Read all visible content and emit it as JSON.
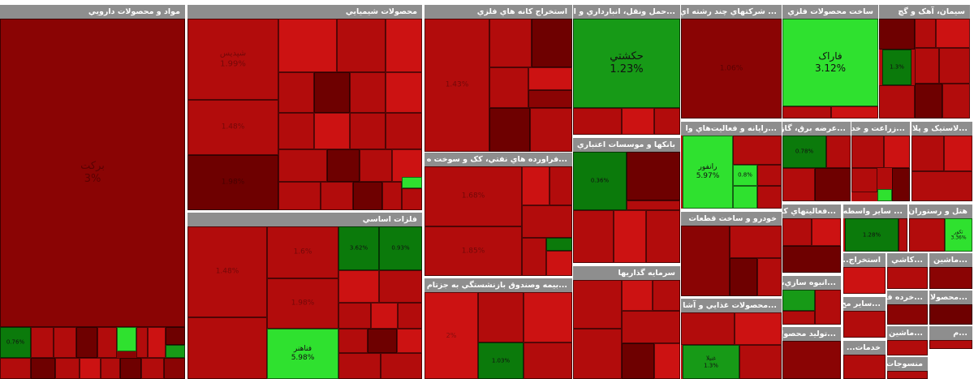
{
  "colors": {
    "dark_red": "#6e0000",
    "deep_red": "#8a0404",
    "red": "#b20c0c",
    "bright_red": "#cc1212",
    "dark_green": "#0b7a0b",
    "green": "#179a17",
    "bright_green": "#2fe12f",
    "header_gray": "#8e8e8e"
  },
  "sectors": [
    {
      "key": "pharma",
      "title": "مواد و محصولات دارويي",
      "labels": [
        {
          "tile": "big",
          "name": "برکت",
          "pct": "3%"
        },
        {
          "tile": "g1",
          "name": "",
          "pct": "0.76%"
        }
      ]
    },
    {
      "key": "chemical",
      "title": "محصولات شيميايي",
      "labels": [
        {
          "tile": "a",
          "name": "شپدیس",
          "pct": "1.99%"
        },
        {
          "tile": "b",
          "name": "",
          "pct": "1.48%"
        },
        {
          "tile": "c",
          "name": "",
          "pct": "1.98%"
        }
      ]
    },
    {
      "key": "mining",
      "title": "استخراج کانه هاي فلزي",
      "labels": [
        {
          "tile": "a",
          "name": "",
          "pct": "1.43%"
        }
      ]
    },
    {
      "key": "transport",
      "title": "...حمل ونقل، انبارداري و ار",
      "labels": [
        {
          "tile": "hk",
          "name": "حکشتي",
          "pct": "1.23%"
        }
      ]
    },
    {
      "key": "multi",
      "title": "... شرکتهاي چند رشته اي",
      "labels": [
        {
          "tile": "a",
          "name": "",
          "pct": "1.06%"
        }
      ]
    },
    {
      "key": "metalprod",
      "title": "ساخت محصولات فلزي",
      "labels": [
        {
          "tile": "fr",
          "name": "فاراک",
          "pct": "3.12%"
        }
      ]
    },
    {
      "key": "cement",
      "title": "سيمان، آهک و گچ",
      "labels": [
        {
          "tile": "g",
          "name": "",
          "pct": "1.3%"
        }
      ]
    },
    {
      "key": "refinery",
      "title": "...فراورده هاي نفتي، کک و سوخت ه",
      "labels": [
        {
          "tile": "a",
          "name": "",
          "pct": "1.68%"
        },
        {
          "tile": "b",
          "name": "",
          "pct": "1.85%"
        }
      ]
    },
    {
      "key": "basemetal",
      "title": "فلزات اساسي",
      "labels": [
        {
          "tile": "a",
          "name": "",
          "pct": "1.48%"
        },
        {
          "tile": "b",
          "name": "",
          "pct": "1.6%"
        },
        {
          "tile": "c",
          "name": "",
          "pct": "1.98%"
        },
        {
          "tile": "fh",
          "name": "فناهنر",
          "pct": "5.98%"
        },
        {
          "tile": "g1",
          "name": "",
          "pct": "3.62%"
        },
        {
          "tile": "g2",
          "name": "",
          "pct": "0.93%"
        }
      ]
    },
    {
      "key": "banks",
      "title": "بانکها و موسسات اعتباري",
      "labels": [
        {
          "tile": "g",
          "name": "",
          "pct": "0.36%"
        }
      ]
    },
    {
      "key": "insurance",
      "title": "...بيمه وصندوق بازنشستگي به جزتام",
      "labels": [
        {
          "tile": "a",
          "name": "",
          "pct": "2%"
        },
        {
          "tile": "g",
          "name": "",
          "pct": "1.03%"
        }
      ]
    },
    {
      "key": "invest",
      "title": "سرمايه گذاريها",
      "labels": []
    },
    {
      "key": "computer",
      "title": "...رايانه و فعاليت‌هاي وا",
      "labels": [
        {
          "tile": "rn",
          "name": "رانفور",
          "pct": "5.97%"
        },
        {
          "tile": "g2",
          "name": "",
          "pct": "0.8%"
        }
      ]
    },
    {
      "key": "auto",
      "title": "خودرو و ساخت قطعات",
      "labels": []
    },
    {
      "key": "food",
      "title": "...محصولات غذايي و آشا",
      "labels": [
        {
          "tile": "g",
          "name": "غنيلا",
          "pct": "1.3%"
        }
      ]
    },
    {
      "key": "power",
      "title": "...عرضه برق، گاز",
      "labels": [
        {
          "tile": "g",
          "name": "",
          "pct": "0.78%"
        }
      ]
    },
    {
      "key": "agri",
      "title": "...زراعت و خدم",
      "labels": []
    },
    {
      "key": "plastic",
      "title": "...لاستيک و پلا",
      "labels": []
    },
    {
      "key": "misc1",
      "title": "...فعاليتهاي کم",
      "labels": []
    },
    {
      "key": "broker",
      "title": "... ساير واسطه",
      "labels": [
        {
          "tile": "g",
          "name": "",
          "pct": "1.28%"
        }
      ]
    },
    {
      "key": "hotel",
      "title": "هتل و رستوران",
      "labels": [
        {
          "tile": "g",
          "name": "تکور",
          "pct": "3.36%"
        }
      ]
    },
    {
      "key": "build",
      "title": "...انبوه سازي، ا",
      "labels": []
    },
    {
      "key": "extract",
      "title": "استخراج...",
      "labels": []
    },
    {
      "key": "tile",
      "title": "...کاشي",
      "labels": []
    },
    {
      "key": "machine",
      "title": "...ماشين",
      "labels": []
    },
    {
      "key": "products",
      "title": "...توليد محصولا",
      "labels": []
    },
    {
      "key": "misc2",
      "title": "...ساير مح",
      "labels": []
    },
    {
      "key": "retail",
      "title": "...خرده فر",
      "labels": []
    },
    {
      "key": "prod2",
      "title": "...محصولا",
      "labels": []
    },
    {
      "key": "services",
      "title": "خدمات...",
      "labels": []
    },
    {
      "key": "machine2",
      "title": "...ماشين آ",
      "labels": []
    },
    {
      "key": "small",
      "title": "...م",
      "labels": []
    },
    {
      "key": "textile",
      "title": "منسوجات",
      "labels": []
    }
  ]
}
